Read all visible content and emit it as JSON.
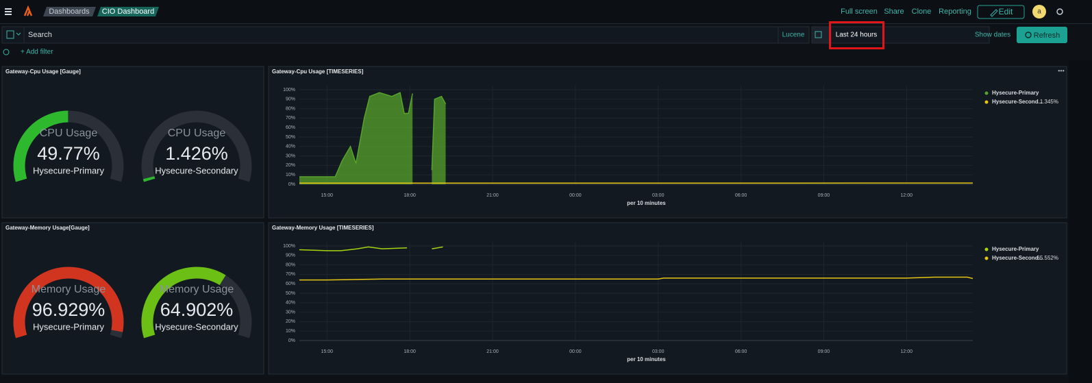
{
  "header": {
    "breadcrumbs": [
      "Dashboards",
      "CIO Dashboard"
    ],
    "links": [
      "Full screen",
      "Share",
      "Clone",
      "Reporting"
    ],
    "edit": "Edit",
    "avatar": "a"
  },
  "query_bar": {
    "search": "Search",
    "language": "Lucene",
    "time_range": "Last 24 hours",
    "show_dates": "Show dates",
    "refresh": "Refresh",
    "add_filter": "+ Add filter"
  },
  "panels": [
    {
      "title": "Gateway-Cpu Usage [Gauge]",
      "chart_data": {
        "type": "gauge",
        "ylim": [
          0,
          100
        ],
        "track_color": "#2a2f38",
        "gauges": [
          {
            "label": "CPU Usage",
            "value": 49.77,
            "value_label": "49.77%",
            "name": "Hysecure-Primary",
            "color": "#2eb82e"
          },
          {
            "label": "CPU Usage",
            "value": 1.426,
            "value_label": "1.426%",
            "name": "Hysecure-Secondary",
            "color": "#2eb82e"
          }
        ]
      }
    },
    {
      "title": "Gateway-Cpu Usage [TIMESERIES]",
      "chart_data": {
        "type": "line",
        "xlim": [
          14,
          38.4
        ],
        "ylim": [
          0,
          100
        ],
        "grid": true,
        "x_label": "per 10 minutes",
        "xticks": [
          {
            "value": 15,
            "label": "15:00"
          },
          {
            "value": 18,
            "label": "18:00"
          },
          {
            "value": 21,
            "label": "21:00"
          },
          {
            "value": 24,
            "label": "00:00"
          },
          {
            "value": 27,
            "label": "03:00"
          },
          {
            "value": 30,
            "label": "06:00"
          },
          {
            "value": 33,
            "label": "09:00"
          },
          {
            "value": 36,
            "label": "12:00"
          }
        ],
        "yticks": [
          {
            "value": 0,
            "label": "0%"
          },
          {
            "value": 10,
            "label": "10%"
          },
          {
            "value": 20,
            "label": "20%"
          },
          {
            "value": 30,
            "label": "30%"
          },
          {
            "value": 40,
            "label": "40%"
          },
          {
            "value": 50,
            "label": "50%"
          },
          {
            "value": 60,
            "label": "60%"
          },
          {
            "value": 70,
            "label": "70%"
          },
          {
            "value": 80,
            "label": "80%"
          },
          {
            "value": 90,
            "label": "90%"
          },
          {
            "value": 100,
            "label": "100%"
          }
        ],
        "series": [
          {
            "name": "Hysecure-Primary",
            "color": "#57a32c",
            "area": true,
            "x": [
              14.0,
              15.3,
              15.55,
              15.85,
              16.05,
              16.35,
              16.55,
              16.9,
              17.35,
              17.65,
              17.8,
              17.95,
              18.1,
              18.4,
              18.8,
              18.9,
              19.15,
              19.3
            ],
            "values": [
              8,
              8,
              25,
              40,
              22,
              70,
              93,
              97,
              93,
              97,
              75,
              75,
              96,
              null,
              15,
              90,
              93,
              85
            ]
          },
          {
            "name": "Hysecure-Second...",
            "color": "#e5c512",
            "area": false,
            "x": [
              14,
              20,
              26,
              32,
              38.4
            ],
            "values": [
              1.3,
              1.3,
              1.3,
              1.3,
              1.345
            ],
            "legend_value_label": "1.345%"
          }
        ]
      }
    },
    {
      "title": "Gateway-Memory Usage[Gauge]",
      "chart_data": {
        "type": "gauge",
        "ylim": [
          0,
          100
        ],
        "track_color": "#2a2f38",
        "gauges": [
          {
            "label": "Memory Usage",
            "value": 96.929,
            "value_label": "96.929%",
            "name": "Hysecure-Primary",
            "color": "#d2351f"
          },
          {
            "label": "Memory Usage",
            "value": 64.902,
            "value_label": "64.902%",
            "name": "Hysecure-Secondary",
            "color": "#6cbf15"
          }
        ]
      }
    },
    {
      "title": "Gateway-Memory Usage [TIMESERIES]",
      "chart_data": {
        "type": "line",
        "xlim": [
          14,
          38.4
        ],
        "ylim": [
          0,
          100
        ],
        "grid": true,
        "x_label": "per 10 minutes",
        "xticks": [
          {
            "value": 15,
            "label": "15:00"
          },
          {
            "value": 18,
            "label": "18:00"
          },
          {
            "value": 21,
            "label": "21:00"
          },
          {
            "value": 24,
            "label": "00:00"
          },
          {
            "value": 27,
            "label": "03:00"
          },
          {
            "value": 30,
            "label": "06:00"
          },
          {
            "value": 33,
            "label": "09:00"
          },
          {
            "value": 36,
            "label": "12:00"
          }
        ],
        "yticks": [
          {
            "value": 0,
            "label": "0%"
          },
          {
            "value": 10,
            "label": "10%"
          },
          {
            "value": 20,
            "label": "20%"
          },
          {
            "value": 30,
            "label": "30%"
          },
          {
            "value": 40,
            "label": "40%"
          },
          {
            "value": 50,
            "label": "50%"
          },
          {
            "value": 60,
            "label": "60%"
          },
          {
            "value": 70,
            "label": "70%"
          },
          {
            "value": 80,
            "label": "80%"
          },
          {
            "value": 90,
            "label": "90%"
          },
          {
            "value": 100,
            "label": "100%"
          }
        ],
        "series": [
          {
            "name": "Hysecure-Primary",
            "color": "#a6d610",
            "area": false,
            "x": [
              14,
              15,
              15.5,
              16.1,
              16.5,
              17,
              17.9,
              18.3,
              18.8,
              19.2
            ],
            "values": [
              96,
              95,
              95,
              97,
              99,
              97,
              98,
              null,
              97,
              99
            ]
          },
          {
            "name": "Hysecure-Second...",
            "color": "#e5c512",
            "area": false,
            "x": [
              14,
              15,
              17,
              20,
              27,
              27.2,
              33,
              36,
              37,
              38.2,
              38.4
            ],
            "values": [
              64,
              64,
              65,
              65,
              65,
              66,
              66,
              66,
              67,
              67,
              65.552
            ],
            "legend_value_label": "65.552%"
          }
        ]
      }
    }
  ]
}
